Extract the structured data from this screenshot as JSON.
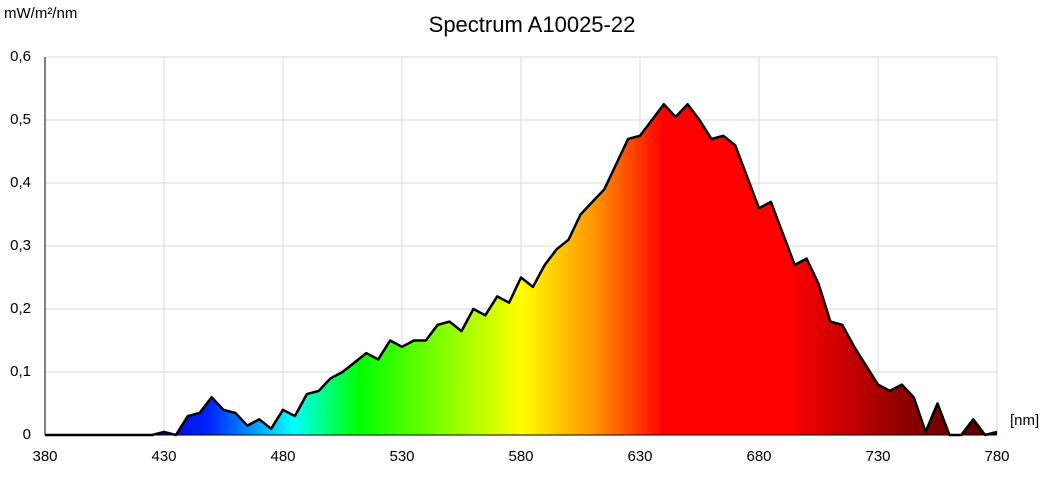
{
  "chart_data": {
    "type": "area",
    "title": "Spectrum A10025-22",
    "y_label": "mW/m²/nm",
    "x_label": "[nm]",
    "x": [
      380,
      385,
      390,
      395,
      400,
      405,
      410,
      415,
      420,
      425,
      430,
      435,
      440,
      445,
      450,
      455,
      460,
      465,
      470,
      475,
      480,
      485,
      490,
      495,
      500,
      505,
      510,
      515,
      520,
      525,
      530,
      535,
      540,
      545,
      550,
      555,
      560,
      565,
      570,
      575,
      580,
      585,
      590,
      595,
      600,
      605,
      610,
      615,
      620,
      625,
      630,
      635,
      640,
      645,
      650,
      655,
      660,
      665,
      670,
      675,
      680,
      685,
      690,
      695,
      700,
      705,
      710,
      715,
      720,
      725,
      730,
      735,
      740,
      745,
      750,
      755,
      760,
      765,
      770,
      775,
      780
    ],
    "values": [
      0,
      0,
      0,
      0,
      0,
      0,
      0,
      0,
      0,
      0,
      0.005,
      0,
      0.03,
      0.035,
      0.06,
      0.04,
      0.035,
      0.015,
      0.025,
      0.01,
      0.04,
      0.03,
      0.065,
      0.07,
      0.09,
      0.1,
      0.115,
      0.13,
      0.12,
      0.15,
      0.14,
      0.15,
      0.15,
      0.175,
      0.18,
      0.165,
      0.2,
      0.19,
      0.22,
      0.21,
      0.25,
      0.235,
      0.27,
      0.295,
      0.31,
      0.35,
      0.37,
      0.39,
      0.43,
      0.47,
      0.475,
      0.5,
      0.525,
      0.505,
      0.525,
      0.5,
      0.47,
      0.475,
      0.46,
      0.41,
      0.36,
      0.37,
      0.32,
      0.27,
      0.28,
      0.24,
      0.18,
      0.175,
      0.14,
      0.11,
      0.08,
      0.07,
      0.08,
      0.06,
      0.005,
      0.05,
      0,
      0,
      0.025,
      0,
      0.005
    ],
    "xlim": [
      380,
      780
    ],
    "xticks": [
      380,
      430,
      480,
      530,
      580,
      630,
      680,
      730,
      780
    ],
    "ylim": [
      0,
      0.6
    ],
    "yticks": [
      0,
      {
        "value": 0.1,
        "label": "0,1"
      },
      {
        "value": 0.2,
        "label": "0,2"
      },
      {
        "value": 0.3,
        "label": "0,3"
      },
      {
        "value": 0.4,
        "label": "0,4"
      },
      {
        "value": 0.5,
        "label": "0,5"
      },
      {
        "value": 0.6,
        "label": "0,6"
      }
    ],
    "grid": true,
    "line_color": "#000000"
  }
}
